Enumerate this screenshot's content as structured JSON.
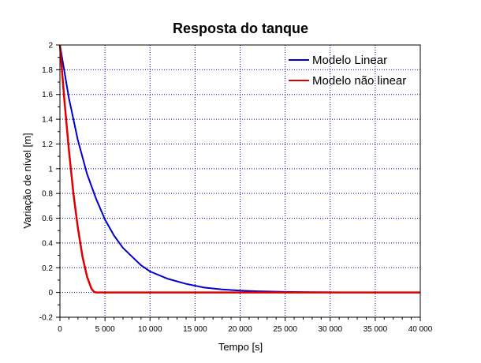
{
  "chart_data": {
    "type": "line",
    "title": "Resposta do tanque",
    "xlabel": "Tempo [s]",
    "ylabel": "Variação de nível [m]",
    "xlim": [
      0,
      40000
    ],
    "ylim": [
      -0.2,
      2
    ],
    "xticks": [
      0,
      5000,
      10000,
      15000,
      20000,
      25000,
      30000,
      35000,
      40000
    ],
    "xtick_labels": [
      "0",
      "5 000",
      "10 000",
      "15 000",
      "20 000",
      "25 000",
      "30 000",
      "35 000",
      "40 000"
    ],
    "yticks": [
      -0.2,
      0,
      0.2,
      0.4,
      0.6,
      0.8,
      1,
      1.2,
      1.4,
      1.6,
      1.8,
      2
    ],
    "ytick_labels": [
      "-0.2",
      "0",
      "0.2",
      "0.4",
      "0.6",
      "0.8",
      "1",
      "1.2",
      "1.4",
      "1.6",
      "1.8",
      "2"
    ],
    "grid": true,
    "legend_position": "top-right",
    "series": [
      {
        "name": "Modelo Linear",
        "color": "#0000cc",
        "x": [
          0,
          1000,
          2000,
          3000,
          4000,
          5000,
          6000,
          7000,
          8000,
          9000,
          10000,
          12000,
          14000,
          16000,
          18000,
          20000,
          22000,
          25000,
          28000,
          31000
        ],
        "y": [
          2.0,
          1.57,
          1.23,
          0.96,
          0.76,
          0.59,
          0.46,
          0.36,
          0.29,
          0.22,
          0.17,
          0.11,
          0.07,
          0.04,
          0.025,
          0.015,
          0.01,
          0.005,
          0.002,
          0.001
        ]
      },
      {
        "name": "Modelo não linear",
        "color": "#dd0000",
        "x": [
          0,
          500,
          1000,
          1500,
          2000,
          2500,
          3000,
          3500,
          3800,
          4000,
          40000
        ],
        "y": [
          2.0,
          1.55,
          1.15,
          0.8,
          0.52,
          0.29,
          0.13,
          0.03,
          0.005,
          0,
          0
        ]
      }
    ]
  }
}
